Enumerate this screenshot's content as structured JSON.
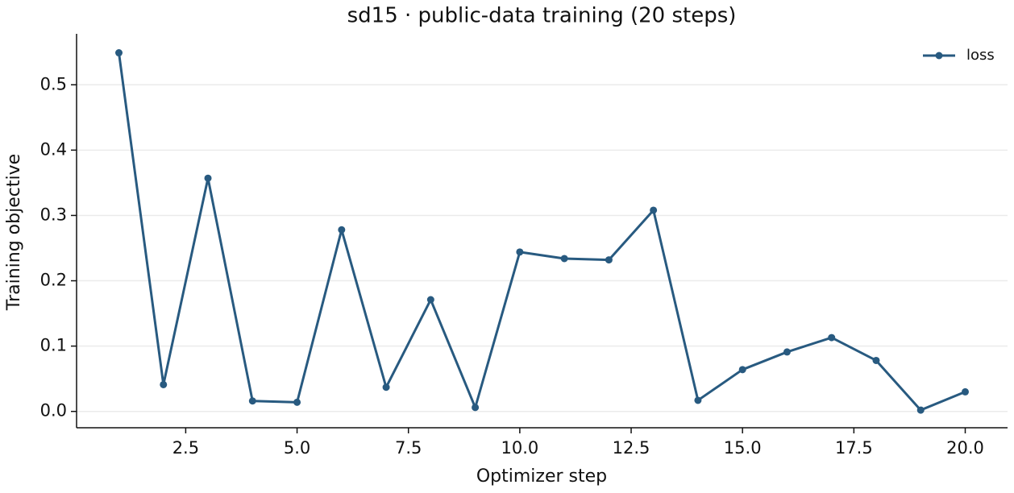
{
  "chart_data": {
    "type": "line",
    "title": "sd15 · public-data training (20 steps)",
    "x_label": "Optimizer step",
    "y_label": "Training objective",
    "series": [
      {
        "name": "loss",
        "color": "#285a80",
        "x": [
          1,
          2,
          3,
          4,
          5,
          6,
          7,
          8,
          9,
          10,
          11,
          12,
          13,
          14,
          15,
          16,
          17,
          18,
          19,
          20
        ],
        "values": [
          0.549,
          0.041,
          0.357,
          0.016,
          0.014,
          0.278,
          0.037,
          0.171,
          0.006,
          0.244,
          0.234,
          0.232,
          0.308,
          0.017,
          0.064,
          0.091,
          0.113,
          0.078,
          0.002,
          0.03
        ]
      }
    ],
    "xlim": [
      0.05,
      20.95
    ],
    "ylim": [
      -0.025,
      0.578
    ],
    "xticks": [
      2.5,
      {
        "value": 5,
        "label": "5.0"
      },
      7.5,
      {
        "value": 10,
        "label": "10.0"
      },
      12.5,
      {
        "value": 15,
        "label": "15.0"
      },
      17.5,
      {
        "value": 20,
        "label": "20.0"
      }
    ],
    "yticks": [
      {
        "value": 0,
        "label": "0.0"
      },
      0.1,
      0.2,
      0.3,
      0.4,
      0.5
    ],
    "grid": "y",
    "legend": "upper right"
  }
}
